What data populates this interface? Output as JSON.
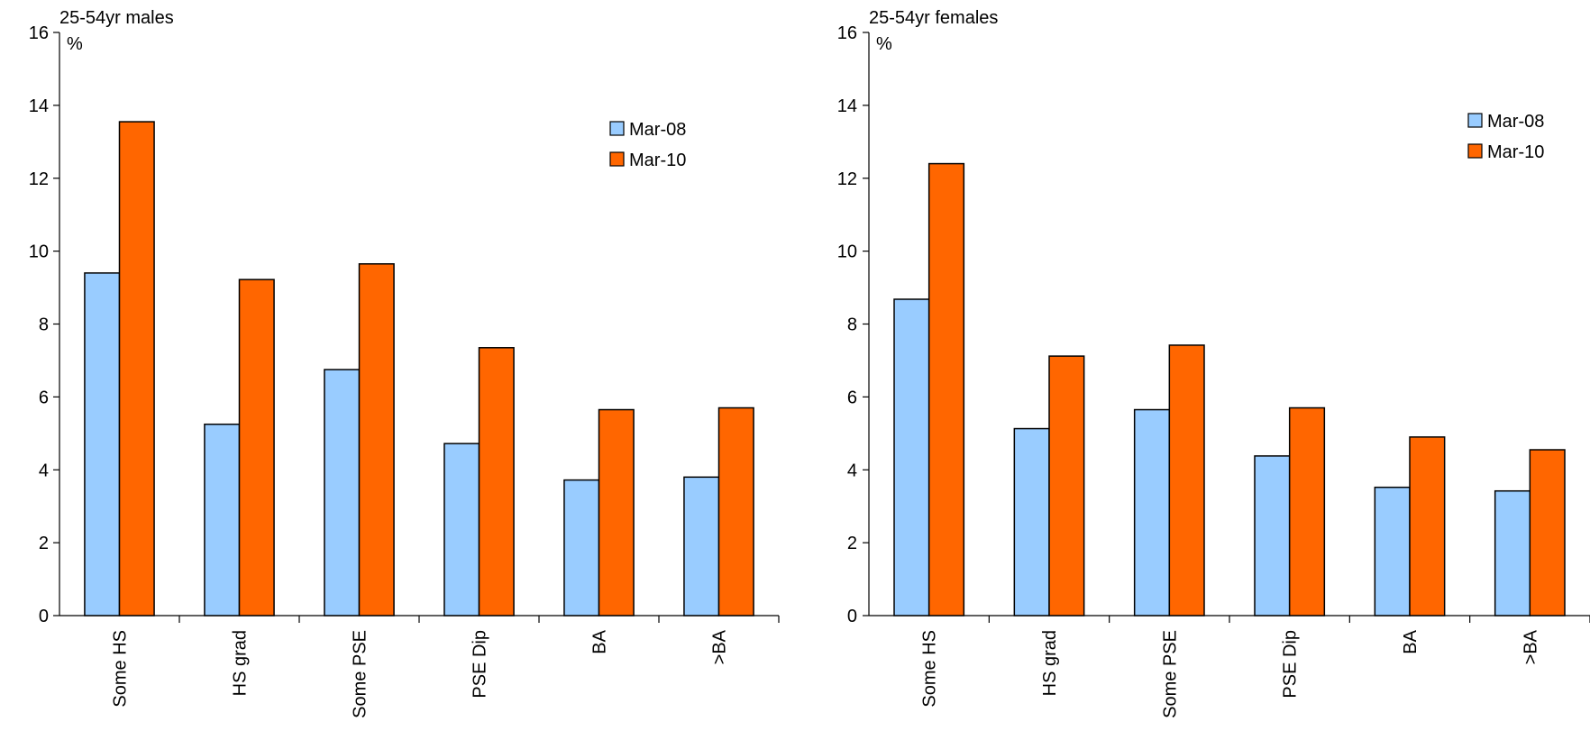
{
  "chart_data": [
    {
      "type": "bar",
      "title": "25-54yr males",
      "ylabel": "%",
      "xlabel": "",
      "ylim": [
        0,
        16
      ],
      "yticks": [
        0,
        2,
        4,
        6,
        8,
        10,
        12,
        14,
        16
      ],
      "categories": [
        "Some HS",
        "HS grad",
        "Some PSE",
        "PSE Dip",
        "BA",
        ">BA"
      ],
      "series": [
        {
          "name": "Mar-08",
          "color": "#99ccff",
          "values": [
            9.4,
            5.25,
            6.75,
            4.72,
            3.72,
            3.8
          ]
        },
        {
          "name": "Mar-10",
          "color": "#ff6600",
          "values": [
            13.55,
            9.22,
            9.65,
            7.35,
            5.65,
            5.7
          ]
        }
      ],
      "legend_position": "top-right",
      "grid": false
    },
    {
      "type": "bar",
      "title": "25-54yr females",
      "ylabel": "%",
      "xlabel": "",
      "ylim": [
        0,
        16
      ],
      "yticks": [
        0,
        2,
        4,
        6,
        8,
        10,
        12,
        14,
        16
      ],
      "categories": [
        "Some HS",
        "HS grad",
        "Some PSE",
        "PSE Dip",
        "BA",
        ">BA"
      ],
      "series": [
        {
          "name": "Mar-08",
          "color": "#99ccff",
          "values": [
            8.68,
            5.13,
            5.65,
            4.38,
            3.52,
            3.42
          ]
        },
        {
          "name": "Mar-10",
          "color": "#ff6600",
          "values": [
            12.4,
            7.12,
            7.42,
            5.7,
            4.9,
            4.55
          ]
        }
      ],
      "legend_position": "top-right",
      "grid": false
    }
  ]
}
